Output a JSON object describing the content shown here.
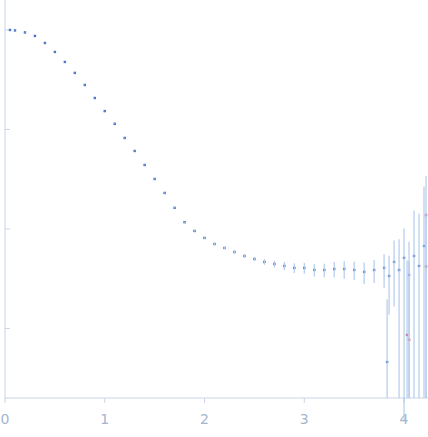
{
  "chart_data": {
    "type": "scatter",
    "log": "y",
    "tick_labels": "x",
    "marker": "square",
    "grid": false,
    "xlim": [
      0,
      4.24
    ],
    "ylim": [
      0.0002,
      2
    ],
    "xticks": [
      0,
      1,
      2,
      3,
      4
    ],
    "yticks": [
      0.001,
      0.01,
      0.1,
      1
    ],
    "series": [
      {
        "color": "#3b6cc8",
        "x": [
          0.05,
          0.1,
          0.2,
          0.3,
          0.4,
          0.5,
          0.6,
          0.7,
          0.8,
          0.9,
          1.0,
          1.1,
          1.2,
          1.3,
          1.4,
          1.5,
          1.6,
          1.7,
          1.8,
          1.9,
          2.0,
          2.1,
          2.2,
          2.3,
          2.4,
          2.5,
          2.6,
          2.7,
          2.8,
          2.9,
          3.0,
          3.1,
          3.2,
          3.3,
          3.4,
          3.5,
          3.6,
          3.7,
          3.8,
          3.83,
          3.85,
          3.9,
          3.95,
          4.0,
          4.05,
          4.1,
          4.15,
          4.2
        ],
        "values": [
          1.0,
          0.989,
          0.944,
          0.871,
          0.74,
          0.601,
          0.477,
          0.37,
          0.28,
          0.207,
          0.153,
          0.114,
          0.0822,
          0.0608,
          0.044,
          0.0318,
          0.023,
          0.0163,
          0.0117,
          0.00955,
          0.00813,
          0.00706,
          0.00644,
          0.00587,
          0.00535,
          0.00499,
          0.00466,
          0.00445,
          0.00425,
          0.00406,
          0.00406,
          0.00387,
          0.00387,
          0.00396,
          0.00396,
          0.00387,
          0.0037,
          0.00387,
          0.00406,
          0.00046,
          0.00337,
          0.00466,
          0.00387,
          0.00512,
          0.00345,
          0.00535,
          0.00425,
          0.00675
        ],
        "errors": [
          0.005,
          0.005,
          0.005,
          0.004,
          0.004,
          0.003,
          0.003,
          0.002,
          0.002,
          0.0015,
          0.001,
          0.0008,
          0.0006,
          0.0005,
          0.0004,
          0.0003,
          0.00025,
          0.0002,
          0.00015,
          0.00015,
          0.00015,
          0.00015,
          0.00018,
          0.0002,
          0.00022,
          0.00025,
          0.0003,
          0.00035,
          0.0004,
          0.00045,
          0.0005,
          0.00055,
          0.0006,
          0.0007,
          0.0008,
          0.0008,
          0.0009,
          0.001,
          0.0015,
          0.0015,
          0.002,
          0.003,
          0.004,
          0.005,
          0.004,
          0.01,
          0.01,
          0.02
        ]
      },
      {
        "color": "#e8283c",
        "x": [
          4.03,
          4.05,
          4.22,
          4.22
        ],
        "values": [
          0.00086,
          0.00077,
          0.0138,
          0.0042
        ],
        "errors": [
          0.004,
          0.004,
          0.02,
          0.01
        ]
      }
    ]
  }
}
